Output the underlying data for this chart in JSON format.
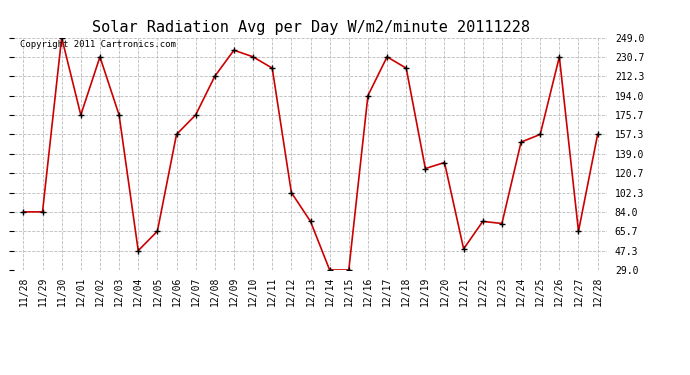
{
  "title": "Solar Radiation Avg per Day W/m2/minute 20111228",
  "copyright_text": "Copyright 2011 Cartronics.com",
  "dates": [
    "11/28",
    "11/29",
    "11/30",
    "12/01",
    "12/02",
    "12/03",
    "12/04",
    "12/05",
    "12/06",
    "12/07",
    "12/08",
    "12/09",
    "12/10",
    "12/11",
    "12/12",
    "12/13",
    "12/14",
    "12/15",
    "12/16",
    "12/17",
    "12/18",
    "12/19",
    "12/20",
    "12/21",
    "12/22",
    "12/23",
    "12/24",
    "12/25",
    "12/26",
    "12/27",
    "12/28"
  ],
  "values": [
    84.0,
    84.0,
    249.0,
    175.7,
    230.7,
    175.7,
    47.3,
    65.7,
    157.3,
    175.7,
    212.3,
    237.0,
    230.7,
    220.0,
    102.3,
    75.0,
    29.0,
    29.0,
    194.0,
    230.7,
    220.0,
    125.0,
    130.7,
    49.0,
    75.0,
    73.0,
    150.0,
    157.3,
    230.7,
    65.7,
    157.3
  ],
  "y_ticks": [
    29.0,
    47.3,
    65.7,
    84.0,
    102.3,
    120.7,
    139.0,
    157.3,
    175.7,
    194.0,
    212.3,
    230.7,
    249.0
  ],
  "ylim": [
    29.0,
    249.0
  ],
  "line_color": "#cc0000",
  "marker_color": "#000000",
  "grid_color": "#bbbbbb",
  "bg_color": "#ffffff",
  "title_fontsize": 11,
  "tick_fontsize": 7,
  "copyright_fontsize": 6.5
}
